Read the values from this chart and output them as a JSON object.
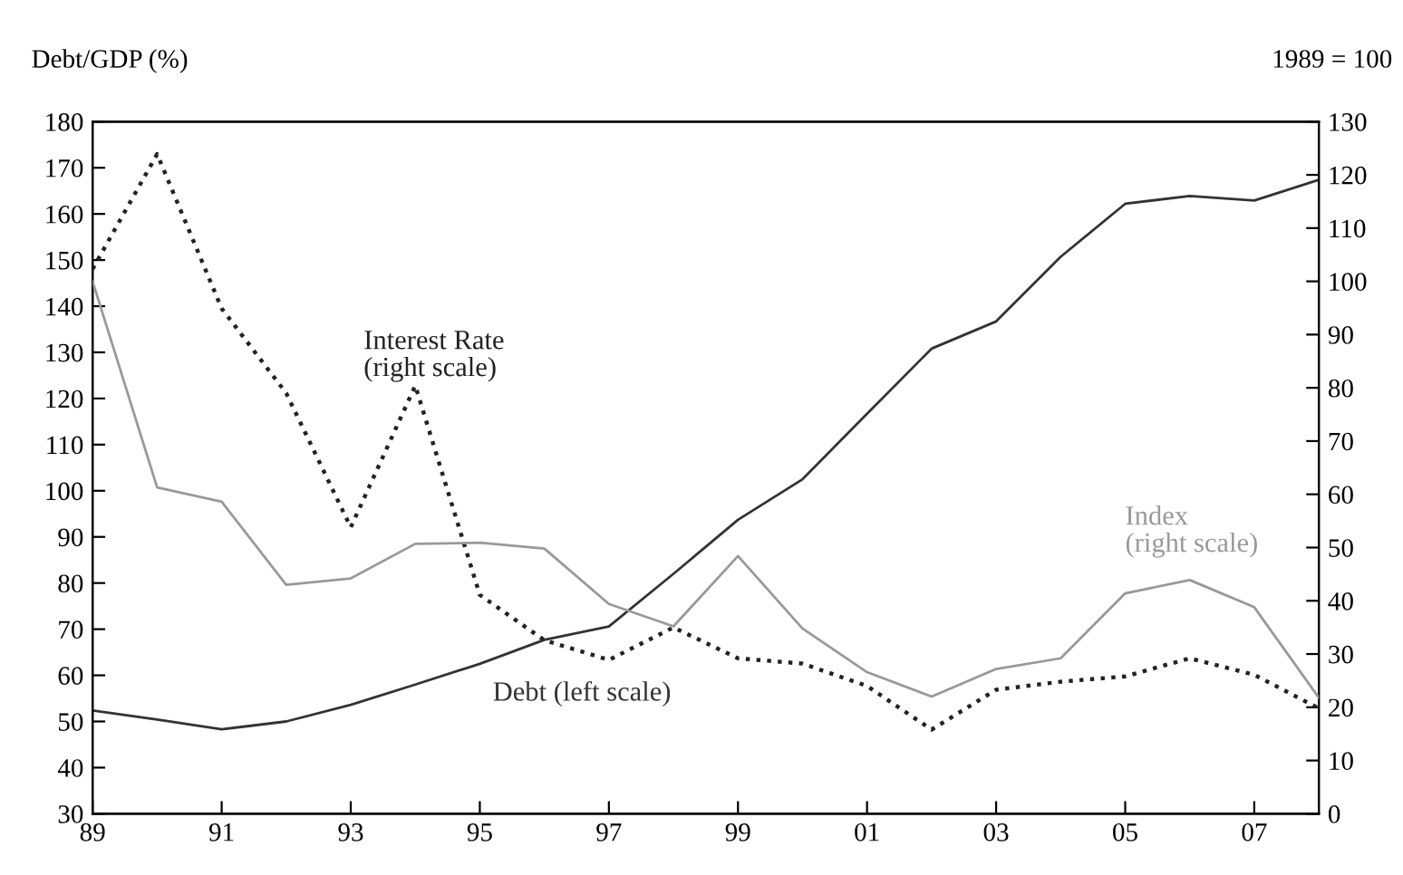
{
  "chart_data": {
    "type": "line",
    "ylabel": "Debt/GDP (%)",
    "y2label": "1989 = 100",
    "x": [
      1989,
      1990,
      1991,
      1992,
      1993,
      1994,
      1995,
      1996,
      1997,
      1998,
      1999,
      2000,
      2001,
      2002,
      2003,
      2004,
      2005,
      2006,
      2007,
      2008
    ],
    "series": [
      {
        "name": "Debt (left scale)",
        "color": "#333333",
        "line_style": "solid",
        "values": [
          52.4,
          50.4,
          48.3,
          50,
          53.6,
          58,
          62.5,
          67.7,
          70.6,
          82,
          93.7,
          102.5,
          116.7,
          130.8,
          136.7,
          150.7,
          162.2,
          163.9,
          162.9,
          167.4
        ]
      },
      {
        "name": "Interest Rate\n(right scale)",
        "color": "#222222",
        "line_style": "dotted",
        "axis": "y2",
        "values": [
          102.3,
          123.9,
          94.9,
          79,
          53.8,
          80.4,
          41.1,
          32.6,
          28.9,
          35,
          29.2,
          28.2,
          24,
          15.8,
          23.3,
          24.8,
          25.8,
          29.2,
          26.1,
          19.8
        ]
      },
      {
        "name": "Index\n(right scale)",
        "color": "#999999",
        "line_style": "solid",
        "axis": "y2",
        "values": [
          100,
          61.3,
          58.6,
          43,
          44.2,
          50.7,
          50.9,
          49.8,
          39.4,
          35.2,
          48.4,
          34.8,
          26.6,
          22,
          27.2,
          29.2,
          41.4,
          43.9,
          38.8,
          21.8
        ]
      }
    ],
    "xlim": [
      1989,
      2008
    ],
    "xticks": [
      {
        "value": 1989,
        "label": "89"
      },
      {
        "value": 1991,
        "label": "91"
      },
      {
        "value": 1993,
        "label": "93"
      },
      {
        "value": 1995,
        "label": "95"
      },
      {
        "value": 1997,
        "label": "97"
      },
      {
        "value": 1999,
        "label": "99"
      },
      {
        "value": 2001,
        "label": "01"
      },
      {
        "value": 2003,
        "label": "03"
      },
      {
        "value": 2005,
        "label": "05"
      },
      {
        "value": 2007,
        "label": "07"
      }
    ],
    "ylim": [
      30,
      180
    ],
    "yticks": [
      30,
      40,
      50,
      60,
      70,
      80,
      90,
      100,
      110,
      120,
      130,
      140,
      150,
      160,
      170,
      180
    ],
    "y2lim": [
      0,
      130
    ],
    "y2ticks": [
      0,
      10,
      20,
      30,
      40,
      50,
      60,
      70,
      80,
      90,
      100,
      110,
      120,
      130
    ],
    "grid": false,
    "legend": false
  }
}
